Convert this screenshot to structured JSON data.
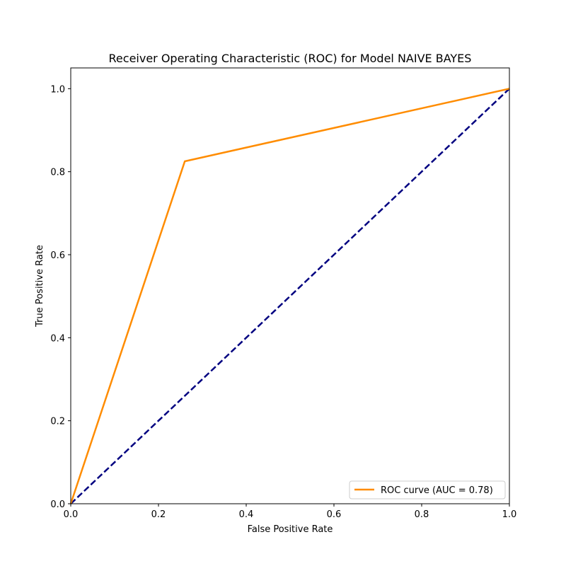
{
  "chart_data": {
    "type": "line",
    "title": "Receiver Operating Characteristic (ROC) for Model NAIVE BAYES",
    "xlabel": "False Positive Rate",
    "ylabel": "True Positive Rate",
    "xlim": [
      0.0,
      1.0
    ],
    "ylim": [
      0.0,
      1.05
    ],
    "xticks": [
      0.0,
      0.2,
      0.4,
      0.6,
      0.8,
      1.0
    ],
    "yticks": [
      0.0,
      0.2,
      0.4,
      0.6,
      0.8,
      1.0
    ],
    "xtick_labels": [
      "0.0",
      "0.2",
      "0.4",
      "0.6",
      "0.8",
      "1.0"
    ],
    "ytick_labels": [
      "0.0",
      "0.2",
      "0.4",
      "0.6",
      "0.8",
      "1.0"
    ],
    "grid": false,
    "legend_position": "lower-right",
    "series": [
      {
        "name": "ROC curve (AUC = 0.78)",
        "color": "#ff8c00",
        "style": "solid",
        "x": [
          0.0,
          0.26,
          1.0
        ],
        "y": [
          0.0,
          0.825,
          1.0
        ]
      },
      {
        "color": "#000080",
        "style": "dashed",
        "x": [
          0.0,
          1.0
        ],
        "y": [
          0.0,
          1.0
        ]
      }
    ]
  }
}
